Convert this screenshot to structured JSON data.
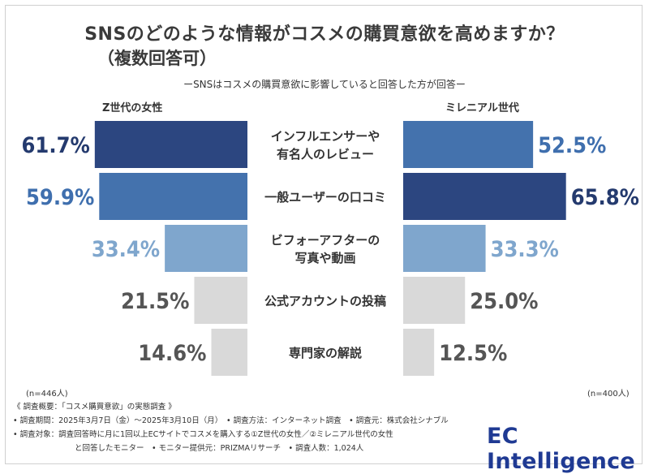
{
  "title": "SNSのどのような情報がコスメの購買意欲を高めますか？",
  "title_line2": "（複数回答可）",
  "note": "ーSNSはコスメの購買意欲に影響していると回答した方が回答ー",
  "logo_text": "EC Intelligence",
  "chart_data": {
    "type": "bar",
    "orientation": "horizontal-butterfly",
    "categories": [
      [
        "インフルエンサーや",
        "有名人のレビュー"
      ],
      [
        "一般ユーザーの口コミ"
      ],
      [
        "ビフォーアフターの",
        "写真や動画"
      ],
      [
        "公式アカウントの投稿"
      ],
      [
        "専門家の解説"
      ]
    ],
    "series": [
      {
        "name": "Z世代の女性",
        "values": [
          61.7,
          59.9,
          33.4,
          21.5,
          14.6
        ],
        "labels": [
          "61.7%",
          "59.9%",
          "33.4%",
          "21.5%",
          "14.6%"
        ],
        "sample": "(n=446人)"
      },
      {
        "name": "ミレニアル世代",
        "values": [
          52.5,
          65.8,
          33.3,
          25.0,
          12.5
        ],
        "labels": [
          "52.5%",
          "65.8%",
          "33.3%",
          "25.0%",
          "12.5%"
        ],
        "sample": "(n=400人)"
      }
    ],
    "colors": {
      "rank1": "#2c4680",
      "rank2": "#4472ad",
      "rank3": "#7fa6cd",
      "rank_other": "#d9d9d9",
      "label_rank1": "#243a6e",
      "label_rank2": "#3f6fae",
      "label_rank3": "#7fa6cd",
      "label_other": "#555555"
    },
    "xlim": [
      0,
      70
    ]
  },
  "footer": {
    "line1": "《 調査概要：「コスメ購買意欲」の実態調査 》",
    "line2": "• 調査期間：2025年3月7日（金）〜2025年3月10日（月）　• 調査方法：インターネット調査　• 調査元：株式会社シナブル",
    "line3": "• 調査対象：調査回答時に月に1回以上ECサイトでコスメを購入する①Z世代の女性／②ミレニアル世代の女性",
    "line4": "と回答したモニター　• モニター提供元：PRIZMAリサーチ　• 調査人数：1,024人"
  }
}
